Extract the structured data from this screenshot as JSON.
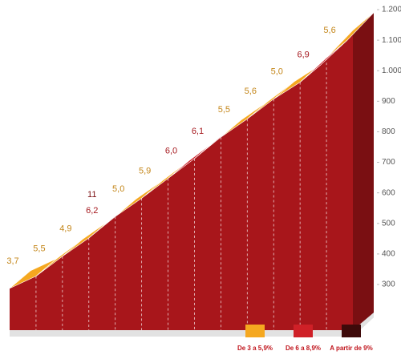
{
  "chart_data": {
    "type": "profile",
    "elevations": [
      345,
      385,
      450,
      510,
      580,
      640,
      705,
      770,
      840,
      900,
      965,
      1020,
      1100,
      1190
    ],
    "values": [
      3.7,
      5.5,
      4.9,
      6.2,
      5.0,
      5.9,
      6.0,
      6.1,
      5.5,
      5.6,
      5.0,
      6.9,
      5.6
    ],
    "value_labels": [
      "3,7",
      "5,5",
      "4,9",
      "6,2",
      "5,0",
      "5,9",
      "6,0",
      "6,1",
      "5,5",
      "5,6",
      "5,0",
      "6,9",
      "5,6"
    ],
    "segment_colors": [
      "#f5a820",
      "#f5a820",
      "#f5a820",
      "#cf2027",
      "#f5a820",
      "#f5a820",
      "#cf2027",
      "#cf2027",
      "#f5a820",
      "#f5a820",
      "#f5a820",
      "#cf2027",
      "#f5a820"
    ],
    "max_gradients": [
      null,
      null,
      null,
      11,
      null,
      null,
      null,
      null,
      null,
      null,
      null,
      null,
      null
    ],
    "ylim": [
      300,
      1200
    ],
    "yticks": [
      300,
      400,
      500,
      600,
      700,
      800,
      900,
      {
        "value": 1000,
        "label": "1.000"
      },
      {
        "value": 1100,
        "label": "1.100"
      },
      {
        "value": 1200,
        "label": "1.200"
      }
    ],
    "legend": [
      {
        "label": "De 3 a 5,9%",
        "color": "#f5a820"
      },
      {
        "label": "De 6 a 8,9%",
        "color": "#cf2027"
      },
      {
        "label": "A partir de 9%",
        "color": "#3e0a0a"
      }
    ]
  }
}
